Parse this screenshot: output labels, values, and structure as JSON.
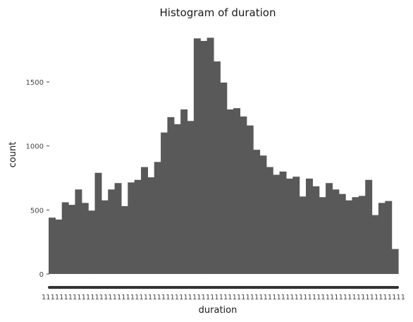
{
  "chart_data": {
    "type": "bar",
    "title": "Histogram of duration",
    "xlabel": "duration",
    "ylabel": "count",
    "ylim": [
      0,
      1850
    ],
    "yticks": [
      0,
      500,
      1000,
      1500
    ],
    "ytick_labels": [
      "0",
      "500",
      "1000",
      "1500"
    ],
    "grid": false,
    "bar_color": "#595959",
    "x_tick_labels_overlapping": "1111111111111111111111111111111111111111111111111111111111111111111111111111111111",
    "values": [
      440,
      425,
      560,
      540,
      660,
      555,
      495,
      790,
      575,
      660,
      710,
      530,
      715,
      735,
      835,
      755,
      875,
      1105,
      1225,
      1170,
      1285,
      1195,
      1840,
      1820,
      1845,
      1660,
      1495,
      1285,
      1295,
      1230,
      1160,
      970,
      925,
      835,
      775,
      800,
      745,
      760,
      605,
      745,
      685,
      600,
      710,
      660,
      625,
      575,
      600,
      610,
      735,
      460,
      555,
      570,
      195
    ]
  }
}
